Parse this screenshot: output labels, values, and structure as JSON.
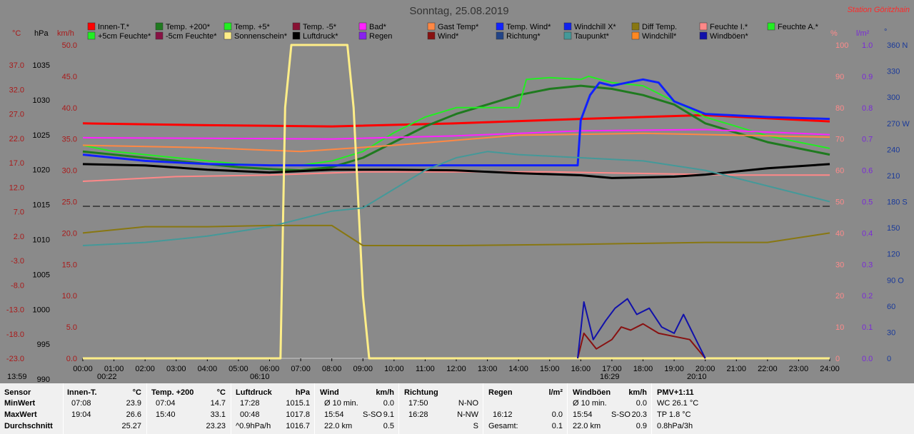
{
  "title": "Sonntag, 25.08.2019",
  "station": "Station Göritzhain",
  "colors": {
    "background": "#8a8a8a",
    "title": "#333333",
    "station": "#ff2a2a",
    "axis_temp": "#aa1a1a",
    "axis_hpa": "#000000",
    "axis_kmh": "#aa1a1a",
    "axis_pct": "#ff8a8a",
    "axis_lm2": "#7a2ad8",
    "axis_deg": "#1a3a9a",
    "grid": "#9a9a9a"
  },
  "legend": [
    {
      "label": "Innen-T.*",
      "color": "#ff0000"
    },
    {
      "label": "Temp. +200*",
      "color": "#1f7a1f"
    },
    {
      "label": "Temp. +5*",
      "color": "#22ee22"
    },
    {
      "label": "Temp. -5*",
      "color": "#881133"
    },
    {
      "label": "Bad*",
      "color": "#ff22ff"
    },
    {
      "label": "Gast Temp*",
      "color": "#ff8844"
    },
    {
      "label": "Temp. Wind*",
      "color": "#1122ff"
    },
    {
      "label": "Windchill X*",
      "color": "#1122ee"
    },
    {
      "label": "Diff Temp.",
      "color": "#887711"
    },
    {
      "label": "Feuchte I.*",
      "color": "#ff8888"
    },
    {
      "label": "Feuchte A.*",
      "color": "#22ee22"
    },
    {
      "label": "+5cm Feuchte*",
      "color": "#22ee22"
    },
    {
      "label": "-5cm Feuchte*",
      "color": "#881144"
    },
    {
      "label": "Sonnenschein*",
      "color": "#ffee88"
    },
    {
      "label": "Luftdruck*",
      "color": "#000000"
    },
    {
      "label": "Regen",
      "color": "#8822ee"
    },
    {
      "label": "Wind*",
      "color": "#881111"
    },
    {
      "label": "Richtung*",
      "color": "#224488"
    },
    {
      "label": "Taupunkt*",
      "color": "#449999"
    },
    {
      "label": "Windchill*",
      "color": "#ff8822"
    },
    {
      "label": "Windböen*",
      "color": "#1111aa"
    }
  ],
  "axes": {
    "temp_unit": "°C",
    "hpa_unit": "hPa",
    "kmh_unit": "km/h",
    "pct_unit": "%",
    "lm2_unit": "l/m²",
    "deg_unit": "°",
    "temp_ticks": [
      "37.0",
      "32.0",
      "27.0",
      "22.0",
      "17.0",
      "12.0",
      "7.0",
      "2.0",
      "-3.0",
      "-8.0",
      "-13.0",
      "-18.0",
      "-23.0"
    ],
    "hpa_ticks": [
      "1035",
      "1030",
      "1025",
      "1020",
      "1015",
      "1010",
      "1005",
      "1000",
      "995",
      "990"
    ],
    "kmh_ticks": [
      "50.0",
      "45.0",
      "40.0",
      "35.0",
      "30.0",
      "25.0",
      "20.0",
      "15.0",
      "10.0",
      "5.0",
      "0.0"
    ],
    "pct_ticks": [
      "100",
      "90",
      "80",
      "70",
      "60",
      "50",
      "40",
      "30",
      "20",
      "10",
      "0"
    ],
    "lm2_ticks": [
      "1.0",
      "0.9",
      "0.8",
      "0.7",
      "0.6",
      "0.5",
      "0.4",
      "0.3",
      "0.2",
      "0.1",
      "0.0"
    ],
    "deg_ticks": [
      "360 N",
      "330",
      "300",
      "270 W",
      "240",
      "210",
      "180 S",
      "150",
      "120",
      "90 O",
      "60",
      "30",
      "0"
    ],
    "time_ticks": [
      "00:00",
      "01:00",
      "02:00",
      "03:00",
      "04:00",
      "05:00",
      "06:00",
      "07:00",
      "08:00",
      "09:00",
      "10:00",
      "11:00",
      "12:00",
      "13:00",
      "14:00",
      "15:00",
      "16:00",
      "17:00",
      "18:00",
      "19:00",
      "20:00",
      "21:00",
      "22:00",
      "23:00",
      "24:00"
    ]
  },
  "time_markers": [
    "13:59",
    "00:22",
    "06:10",
    "16:29",
    "20:10"
  ],
  "chart_data": {
    "type": "line",
    "title": "Sonntag, 25.08.2019",
    "x_unit": "hour",
    "xlim": [
      0,
      24
    ],
    "series": [
      {
        "name": "Innen-T.*",
        "axis": "kmh",
        "x": [
          0,
          4,
          8,
          12,
          16,
          20,
          24
        ],
        "values": [
          37.5,
          37.2,
          37.0,
          37.5,
          38.2,
          38.8,
          37.8
        ]
      },
      {
        "name": "Temp. +200*",
        "axis": "kmh",
        "x": [
          0,
          1,
          2,
          3,
          4,
          5,
          6,
          7,
          8,
          9,
          10,
          11,
          12,
          13,
          14,
          15,
          16,
          17,
          18,
          19,
          20,
          21,
          22,
          23,
          24
        ],
        "values": [
          33.0,
          32.5,
          32.0,
          31.5,
          31.0,
          30.5,
          30.2,
          30.0,
          30.5,
          32.0,
          34.5,
          37.0,
          39.0,
          40.5,
          42.0,
          43.0,
          43.5,
          43.0,
          42.0,
          40.5,
          37.5,
          36.0,
          34.5,
          33.5,
          32.5
        ]
      },
      {
        "name": "Temp. +5*",
        "axis": "kmh",
        "x": [
          0,
          1,
          2,
          3,
          4,
          5,
          6,
          7,
          8,
          9,
          10,
          11,
          12,
          13,
          14,
          14.25,
          15,
          16,
          16.25,
          17,
          18,
          19,
          20,
          21,
          22,
          23,
          24
        ],
        "values": [
          34.0,
          33.0,
          32.5,
          32.0,
          31.5,
          31.0,
          30.8,
          30.8,
          31.5,
          33.0,
          36.0,
          38.5,
          40.0,
          40.0,
          40.0,
          44.5,
          44.8,
          44.5,
          45.0,
          44.0,
          43.5,
          41.0,
          38.5,
          37.0,
          35.5,
          34.5,
          33.5
        ]
      },
      {
        "name": "Bad*",
        "axis": "kmh",
        "x": [
          0,
          4,
          8,
          12,
          16,
          20,
          24
        ],
        "values": [
          35.2,
          35.1,
          35.0,
          35.5,
          36.3,
          36.5,
          35.7
        ]
      },
      {
        "name": "Gast Temp*",
        "axis": "kmh",
        "x": [
          0,
          4,
          7,
          10,
          14,
          18,
          22,
          24
        ],
        "values": [
          34.0,
          33.6,
          33.0,
          34.0,
          35.6,
          35.9,
          35.5,
          35.3
        ]
      },
      {
        "name": "Temp. Wind*",
        "axis": "kmh",
        "x": [
          0,
          2,
          4,
          6,
          9,
          12,
          14,
          15.9,
          16.0,
          16.3,
          16.6,
          17,
          17.5,
          18,
          18.5,
          19,
          20,
          22,
          24
        ],
        "values": [
          32.5,
          31.5,
          31.0,
          30.8,
          30.8,
          30.8,
          30.8,
          30.8,
          38.0,
          42.0,
          44.0,
          43.5,
          44.0,
          44.5,
          44.0,
          41.0,
          39.0,
          38.5,
          38.2
        ]
      },
      {
        "name": "Feuchte I.*",
        "axis": "pct",
        "x": [
          0,
          3,
          6,
          9,
          12,
          15,
          18,
          21,
          24
        ],
        "values": [
          56.5,
          58.0,
          58.5,
          59.5,
          59.5,
          59.5,
          59.0,
          58.5,
          58.5
        ]
      },
      {
        "name": "Luftdruck*",
        "axis": "hpa",
        "x": [
          0,
          2,
          4,
          6,
          8,
          10,
          12,
          14,
          16,
          17,
          18,
          19,
          20,
          22,
          24
        ],
        "values": [
          1017.8,
          1017.6,
          1017.0,
          1016.6,
          1017.0,
          1017.0,
          1016.9,
          1016.5,
          1016.2,
          1015.8,
          1015.9,
          1016.0,
          1016.3,
          1017.2,
          1017.8
        ]
      },
      {
        "name": "Sonnenschein*",
        "axis": "kmh",
        "x": [
          0,
          6.35,
          6.5,
          6.7,
          8.5,
          8.7,
          9.0,
          9.2,
          24
        ],
        "values": [
          0,
          0,
          40,
          50,
          50,
          40,
          10,
          0,
          0
        ]
      },
      {
        "name": "Taupunkt*",
        "axis": "kmh",
        "x": [
          0,
          2,
          4,
          6,
          8,
          9,
          10,
          11,
          12,
          13,
          14,
          16,
          18,
          20,
          22,
          24
        ],
        "values": [
          18.0,
          18.5,
          19.5,
          21.0,
          23.5,
          24.0,
          27.0,
          30.0,
          32.0,
          33.0,
          32.5,
          32.0,
          31.5,
          30.0,
          27.5,
          25.0
        ]
      },
      {
        "name": "Wind*",
        "axis": "kmh",
        "x": [
          15.9,
          16.1,
          16.5,
          17,
          17.3,
          17.6,
          18,
          18.5,
          19,
          19.5,
          20
        ],
        "values": [
          0,
          4,
          1.5,
          3,
          5,
          4.5,
          5.5,
          4,
          3.5,
          3,
          0
        ]
      },
      {
        "name": "Windböen*",
        "axis": "kmh",
        "x": [
          15.9,
          16.1,
          16.4,
          16.8,
          17.1,
          17.5,
          17.8,
          18.2,
          18.6,
          19.0,
          19.3,
          19.7,
          20
        ],
        "values": [
          0,
          9,
          3,
          6,
          8,
          9.5,
          7,
          8,
          5,
          4,
          7,
          3,
          0
        ]
      },
      {
        "name": "Diff Temp.",
        "axis": "kmh",
        "x": [
          0,
          2,
          4,
          6,
          8,
          9,
          12,
          16,
          20,
          22,
          24
        ],
        "values": [
          20.0,
          21.0,
          21.0,
          21.2,
          21.2,
          18.0,
          18.0,
          18.2,
          18.5,
          18.5,
          20.0
        ]
      }
    ]
  },
  "stats": {
    "sensor": {
      "head": "Sensor",
      "min": "MinWert",
      "max": "MaxWert",
      "avg": "Durchschnitt"
    },
    "innen": {
      "head": "Innen-T.",
      "unit": "°C",
      "min_time": "07:08",
      "min_val": "23.9",
      "max_time": "19:04",
      "max_val": "26.6",
      "avg_val": "25.27"
    },
    "temp200": {
      "head": "Temp. +200",
      "unit": "°C",
      "min_time": "07:04",
      "min_val": "14.7",
      "max_time": "15:40",
      "max_val": "33.1",
      "avg_val": "23.23"
    },
    "luftdruck": {
      "head": "Luftdruck",
      "unit": "hPa",
      "min_time": "17:28",
      "min_val": "1015.1",
      "max_time": "00:48",
      "max_val": "1017.8",
      "avg_label": "^0.9hPa/h",
      "avg_val": "1016.7"
    },
    "wind": {
      "head": "Wind",
      "unit": "km/h",
      "r1_label": "Ø 10 min.",
      "r1_val": "0.0",
      "r2_time": "15:54",
      "r2_dir": "S-SO",
      "r2_val": "9.1",
      "r3_label": "22.0 km",
      "r3_val": "0.5"
    },
    "richtung": {
      "head": "Richtung",
      "r1_time": "17:50",
      "r1_val": "N-NO",
      "r2_time": "16:28",
      "r2_val": "N-NW",
      "r3_val": "S"
    },
    "regen": {
      "head": "Regen",
      "unit": "l/m²",
      "r2_time": "16:12",
      "r2_val": "0.0",
      "r3_label": "Gesamt:",
      "r3_val": "0.1"
    },
    "windboeen": {
      "head": "Windböen",
      "unit": "km/h",
      "r1_label": "Ø 10 min.",
      "r1_val": "0.0",
      "r2_time": "15:54",
      "r2_dir": "S-SO",
      "r2_val": "20.3",
      "r3_label": "22.0 km",
      "r3_val": "0.9"
    },
    "pmv": {
      "head": "PMV+1:11",
      "r1": "WC 26.1 °C",
      "r2": "TP 1.8 °C",
      "r3": "0.8hPa/3h"
    }
  }
}
